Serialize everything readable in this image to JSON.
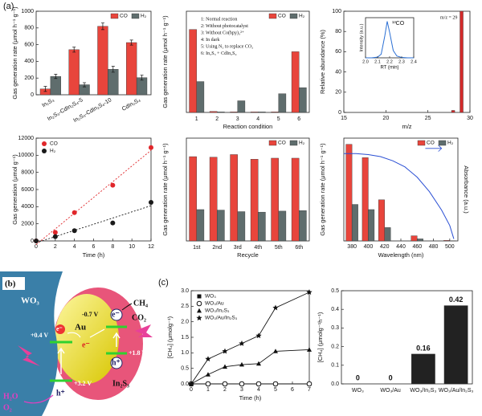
{
  "panels": {
    "a": "(a)",
    "c": "(c)"
  },
  "diagram": {
    "label": "(b)",
    "wo3": "WO₃",
    "au": "Au",
    "au_level": "-0.7 V",
    "wo3_cb": "+0.4 V",
    "wo3_vb": "+3.2 V",
    "in2s3_vb": "+1.8 V",
    "in2s3": "In₂S₃",
    "electron": "e⁻",
    "hole": "h⁺",
    "ch4": "CH₄",
    "co2": "CO₂",
    "h2o": "H₂O",
    "o2": "O₂"
  },
  "chart_data": [
    {
      "type": "bar",
      "ylabel": "Gas generation rate (μmol h⁻¹ g⁻¹)",
      "categories": [
        "In₂S₃",
        "In₂S₃-CdIn₂S₄-5",
        "In₂S₃-CdIn₂S₄-10",
        "CdIn₂S₄"
      ],
      "series": [
        {
          "name": "CO",
          "color": "#e8453c",
          "values": [
            70,
            540,
            820,
            625
          ],
          "errors": [
            30,
            30,
            40,
            30
          ]
        },
        {
          "name": "H₂",
          "color": "#5f6d6d",
          "values": [
            220,
            120,
            305,
            205
          ],
          "errors": [
            25,
            25,
            35,
            30
          ]
        }
      ],
      "ylim": [
        0,
        1000
      ],
      "yticks": [
        0,
        200,
        400,
        600,
        800,
        1000
      ],
      "legend": "upper right"
    },
    {
      "type": "bar",
      "ylabel": "Gas generation rate (μmol h⁻¹ g⁻¹)",
      "xlabel": "Reaction condition",
      "categories": [
        "1",
        "2",
        "3",
        "4",
        "5",
        "6"
      ],
      "series": [
        {
          "name": "CO",
          "color": "#e8453c",
          "values": [
            820,
            10,
            5,
            5,
            5,
            600
          ]
        },
        {
          "name": "H₂",
          "color": "#5f6d6d",
          "values": [
            305,
            5,
            115,
            5,
            185,
            245
          ]
        }
      ],
      "ylim": [
        0,
        1000
      ],
      "legend": "upper right",
      "annotations": [
        "1: Normal reaction",
        "2: Without photocatalyst",
        "3: Without Co(bpy)₃²⁺",
        "4: In dark",
        "5: Using N₂ to replace CO₂",
        "6: In₂S₃ + CdIn₂S₄"
      ]
    },
    {
      "type": "bar",
      "ylabel": "Relative abundance (%)",
      "xlabel": "m/z",
      "x": [
        28,
        29
      ],
      "values": [
        2,
        100
      ],
      "color": "#d42a2a",
      "xlim": [
        15,
        30
      ],
      "xticks": [
        15,
        20,
        25,
        30
      ],
      "ylim": [
        0,
        100
      ],
      "yticks": [
        0,
        20,
        40,
        60,
        80,
        100
      ],
      "annotations": [
        "m/z = 29"
      ],
      "inset": {
        "label": "¹³CO",
        "xlabel": "RT (min)",
        "ylabel": "Intensity (a.u.)",
        "color": "#2a6fd4",
        "x": [
          2.0,
          2.05,
          2.1,
          2.13,
          2.16,
          2.18,
          2.2,
          2.23,
          2.26,
          2.3,
          2.35,
          2.4
        ],
        "values": [
          0,
          0,
          2,
          10,
          60,
          100,
          70,
          20,
          5,
          1,
          0,
          0
        ],
        "xlim": [
          2.0,
          2.4
        ],
        "xticks": [
          {
            "value": 2,
            "label": "2.0"
          },
          2.1,
          2.2,
          2.3,
          2.4
        ],
        "ylim": [
          0,
          110
        ]
      }
    },
    {
      "type": "scatter",
      "ylabel": "Gas generation (μmol g⁻¹)",
      "xlabel": "Time (h)",
      "x": [
        0,
        2,
        4,
        8,
        12
      ],
      "series": [
        {
          "name": "CO",
          "color": "#e0262a",
          "values": [
            0,
            1000,
            3300,
            6500,
            10900
          ]
        },
        {
          "name": "H₂",
          "color": "#1a1a1a",
          "values": [
            0,
            500,
            1200,
            2100,
            4500
          ]
        }
      ],
      "xlim": [
        0,
        12
      ],
      "xticks": [
        0,
        2,
        4,
        6,
        8,
        10,
        12
      ],
      "ylim": [
        0,
        12000
      ],
      "yticks": [
        0,
        2000,
        4000,
        6000,
        8000,
        10000,
        12000
      ],
      "fit": true,
      "legend": "upper left"
    },
    {
      "type": "bar",
      "ylabel": "Gas generation rate (μmol h⁻¹ g⁻¹)",
      "xlabel": "Recycle",
      "categories": [
        "1st",
        "2nd",
        "3rd",
        "4th",
        "5th",
        "6th"
      ],
      "series": [
        {
          "name": "CO",
          "color": "#e8453c",
          "values": [
            820,
            815,
            840,
            795,
            805,
            805
          ]
        },
        {
          "name": "H₂",
          "color": "#5f6d6d",
          "values": [
            305,
            300,
            285,
            280,
            290,
            295
          ]
        }
      ],
      "ylim": [
        0,
        1000
      ],
      "legend": "upper right"
    },
    {
      "type": "bar",
      "ylabel": "Gas generation rate (μmol h⁻¹ g⁻¹)",
      "xlabel": "Wavelength (nm)",
      "y2label": "Absorbance (a.u.)",
      "x": [
        380,
        400,
        420,
        460,
        500
      ],
      "series": [
        {
          "name": "CO",
          "color": "#e8453c",
          "values": [
            940,
            810,
            400,
            50,
            5
          ]
        },
        {
          "name": "H₂",
          "color": "#5f6d6d",
          "values": [
            355,
            305,
            130,
            20,
            2
          ]
        }
      ],
      "xlim": [
        370,
        510
      ],
      "xticks": [
        380,
        400,
        420,
        440,
        460,
        480,
        500
      ],
      "ylim": [
        0,
        1000
      ],
      "y2lim": [
        0,
        1
      ],
      "y2_curve": {
        "color": "#2a4fd4",
        "x": [
          370,
          385,
          400,
          415,
          430,
          445,
          460,
          475,
          490,
          500,
          505
        ],
        "values": [
          0.85,
          0.85,
          0.84,
          0.82,
          0.78,
          0.72,
          0.62,
          0.48,
          0.3,
          0.15,
          0.02
        ]
      },
      "legend": "upper right"
    },
    {
      "type": "line",
      "ylabel": "[CH₄] (μmolg⁻¹)",
      "xlabel": "Time (h)",
      "x": [
        0,
        1,
        2,
        3,
        4,
        5,
        7
      ],
      "series": [
        {
          "name": "WO₃",
          "color": "#111",
          "marker": "square",
          "values": [
            0,
            0,
            0,
            0,
            0,
            0,
            0
          ]
        },
        {
          "name": "WO₃/Au",
          "color": "#111",
          "marker": "circle",
          "values": [
            0,
            0,
            0,
            0,
            0,
            0,
            0
          ]
        },
        {
          "name": "WO₃/In₂S₃",
          "color": "#111",
          "marker": "triangle",
          "values": [
            0,
            0.3,
            0.55,
            0.62,
            0.65,
            1.05,
            1.1
          ]
        },
        {
          "name": "WO₃/Au/In₂S₃",
          "color": "#111",
          "marker": "star",
          "values": [
            0,
            0.8,
            1.05,
            1.3,
            1.55,
            2.45,
            2.95
          ]
        }
      ],
      "xlim": [
        0,
        7
      ],
      "xticks": [
        0,
        1,
        2,
        3,
        4,
        5,
        6,
        7
      ],
      "ylim": [
        0,
        3
      ],
      "yticks": [
        {
          "value": 0,
          "label": "0.0"
        },
        0.5,
        {
          "value": 1,
          "label": "1.0"
        },
        1.5,
        {
          "value": 2,
          "label": "2.0"
        },
        2.5,
        {
          "value": 3,
          "label": "3.0"
        }
      ],
      "legend": "upper left"
    },
    {
      "type": "bar",
      "ylabel": "[CH₄] (μmolg⁻¹h⁻¹)",
      "categories": [
        "WO₃",
        "WO₃/Au",
        "WO₃/In₂S₃",
        "WO₃/Au/In₂S₃"
      ],
      "values": [
        0,
        0,
        0.16,
        0.42
      ],
      "value_labels": [
        "0",
        "0",
        "0.16",
        "0.42"
      ],
      "color": "#222",
      "ylim": [
        0,
        0.5
      ],
      "yticks": [
        {
          "value": 0,
          "label": "0.0"
        },
        0.1,
        0.2,
        0.3,
        0.4,
        0.5
      ]
    }
  ]
}
